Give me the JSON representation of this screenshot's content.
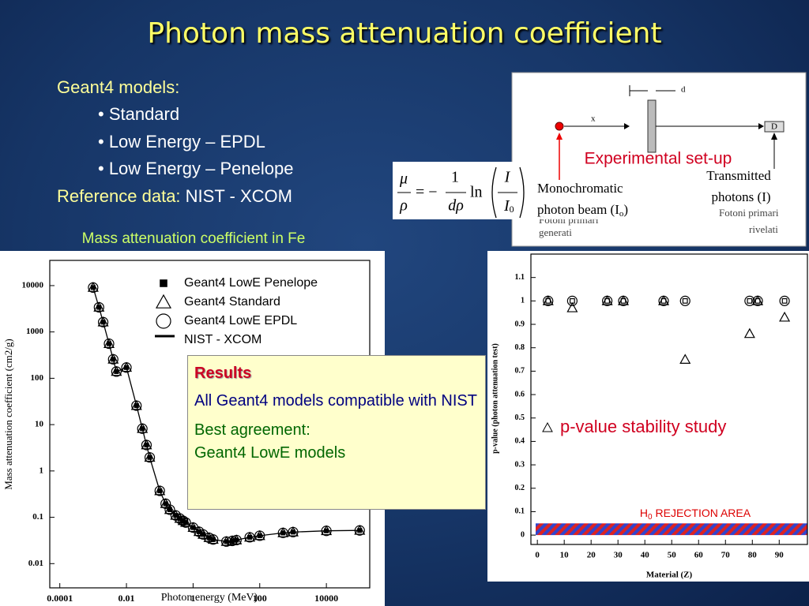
{
  "slide": {
    "title": "Photon mass attenuation coefficient",
    "models_heading": "Geant4 models:",
    "models": [
      "• Standard",
      "• Low Energy – EPDL",
      "• Low Energy – Penelope"
    ],
    "reference_label": "Reference data:",
    "reference_value": "NIST - XCOM"
  },
  "formula": {
    "lhs_num": "μ",
    "lhs_den": "ρ",
    "sign": "= −",
    "num": "1",
    "den": "dρ",
    "fn": "ln",
    "ratio_num": "I",
    "ratio_den": "I",
    "ratio_den_sub": "0"
  },
  "setup": {
    "title": "Experimental set-up",
    "d": "d",
    "x": "x",
    "detector": "D",
    "source_line1": "Monochromatic",
    "source_line2": "photon beam (I",
    "source_sub": "o",
    "source_close": ")",
    "transmitted_line1": "Transmitted",
    "transmitted_line2": "photons (I)",
    "generated_line1": "Fotoni primari",
    "generated_line2": "generati",
    "detected_line1": "Fotoni primari",
    "detected_line2": "rivelati"
  },
  "results": {
    "heading": "Results",
    "line1": "All Geant4 models compatible with NIST",
    "line2": "Best agreement:",
    "line3": "Geant4 LowE models"
  },
  "chart_data": [
    {
      "type": "scatter",
      "title": "Mass attenuation coefficient in Fe",
      "x_label": "Photon energy (MeV)",
      "y_label": "Mass attenuation coefficient (cm2/g)",
      "xscale": "log",
      "yscale": "log",
      "xlim": [
        5e-05,
        200000
      ],
      "ylim": [
        0.003,
        35000
      ],
      "xticks": [
        0.0001,
        0.01,
        1,
        100,
        10000
      ],
      "yticks": [
        0.01,
        0.1,
        1,
        10,
        100,
        1000,
        10000
      ],
      "legend": "upper right",
      "x": [
        0.001,
        0.0015,
        0.002,
        0.003,
        0.004,
        0.005,
        0.01,
        0.02,
        0.03,
        0.04,
        0.05,
        0.1,
        0.15,
        0.2,
        0.3,
        0.4,
        0.5,
        0.6,
        1,
        1.5,
        2,
        3,
        4,
        10,
        15,
        20,
        50,
        100,
        500,
        1000,
        10000,
        100000
      ],
      "series": [
        {
          "name": "Geant4 LowE Penelope",
          "marker": "square",
          "filled": true,
          "color": "#000000",
          "values": [
            9085,
            3399,
            1626,
            557.6,
            256.7,
            139.5,
            170.6,
            25.68,
            8.176,
            3.629,
            1.958,
            0.3717,
            0.1964,
            0.146,
            0.1099,
            0.094,
            0.08414,
            0.07704,
            0.05995,
            0.04883,
            0.04265,
            0.03621,
            0.03312,
            0.02994,
            0.03092,
            0.03224,
            0.037,
            0.04,
            0.046,
            0.048,
            0.051,
            0.052
          ]
        },
        {
          "name": "Geant4 Standard",
          "marker": "triangle",
          "filled": false,
          "color": "#000000",
          "values": [
            9085,
            3399,
            1626,
            557.6,
            256.7,
            139.5,
            170.6,
            25.68,
            8.176,
            3.629,
            1.958,
            0.3717,
            0.1964,
            0.146,
            0.1099,
            0.094,
            0.08414,
            0.07704,
            0.05995,
            0.04883,
            0.04265,
            0.03621,
            0.03312,
            0.02994,
            0.03092,
            0.03224,
            0.037,
            0.04,
            0.046,
            0.048,
            0.051,
            0.052
          ]
        },
        {
          "name": "Geant4 LowE EPDL",
          "marker": "circle",
          "filled": false,
          "color": "#000000",
          "values": [
            9085,
            3399,
            1626,
            557.6,
            256.7,
            139.5,
            170.6,
            25.68,
            8.176,
            3.629,
            1.958,
            0.3717,
            0.1964,
            0.146,
            0.1099,
            0.094,
            0.08414,
            0.07704,
            0.05995,
            0.04883,
            0.04265,
            0.03621,
            0.03312,
            0.02994,
            0.03092,
            0.03224,
            0.037,
            0.04,
            0.046,
            0.048,
            0.051,
            0.052
          ]
        },
        {
          "name": "NIST - XCOM",
          "marker": "line",
          "color": "#000000",
          "values": [
            9085,
            3399,
            1626,
            557.6,
            256.7,
            139.5,
            170.6,
            25.68,
            8.176,
            3.629,
            1.958,
            0.3717,
            0.1964,
            0.146,
            0.1099,
            0.094,
            0.08414,
            0.07704,
            0.05995,
            0.04883,
            0.04265,
            0.03621,
            0.03312,
            0.02994,
            0.03092,
            0.03224,
            0.037,
            0.04,
            0.046,
            0.048,
            0.051,
            0.052
          ]
        }
      ]
    },
    {
      "type": "scatter",
      "x_label": "Material (Z)",
      "y_label": "p-value (photon attenuation test)",
      "xscale": "linear",
      "yscale": "linear",
      "xlim": [
        -2.4,
        100.5
      ],
      "ylim": [
        -0.04,
        1.2
      ],
      "xticks": [
        0,
        10,
        20,
        30,
        40,
        50,
        60,
        70,
        80,
        90
      ],
      "yticks": [
        0,
        0.1,
        0.2,
        0.3,
        0.4,
        0.5,
        0.6,
        0.7,
        0.8,
        0.9,
        1,
        1.1
      ],
      "legend": "none",
      "x": [
        4,
        13,
        26,
        32,
        47,
        55,
        79,
        82,
        92
      ],
      "series": [
        {
          "marker": "square",
          "filled": false,
          "color": "#000000",
          "values": [
            1,
            1,
            1,
            1,
            1,
            1,
            1,
            1,
            1
          ]
        },
        {
          "marker": "triangle",
          "filled": false,
          "color": "#000000",
          "values": [
            1,
            0.97,
            1,
            1,
            1,
            0.75,
            0.86,
            1,
            0.93
          ]
        },
        {
          "marker": "circle",
          "filled": false,
          "color": "#000000",
          "values": [
            1,
            1,
            1,
            1,
            1,
            1,
            1,
            1,
            1
          ]
        }
      ],
      "annotation": "p-value stability study",
      "rejection_area": {
        "label": "H",
        "label_sub": "0",
        "label_rest": " REJECTION AREA",
        "range": [
          0,
          0.05
        ]
      }
    }
  ]
}
